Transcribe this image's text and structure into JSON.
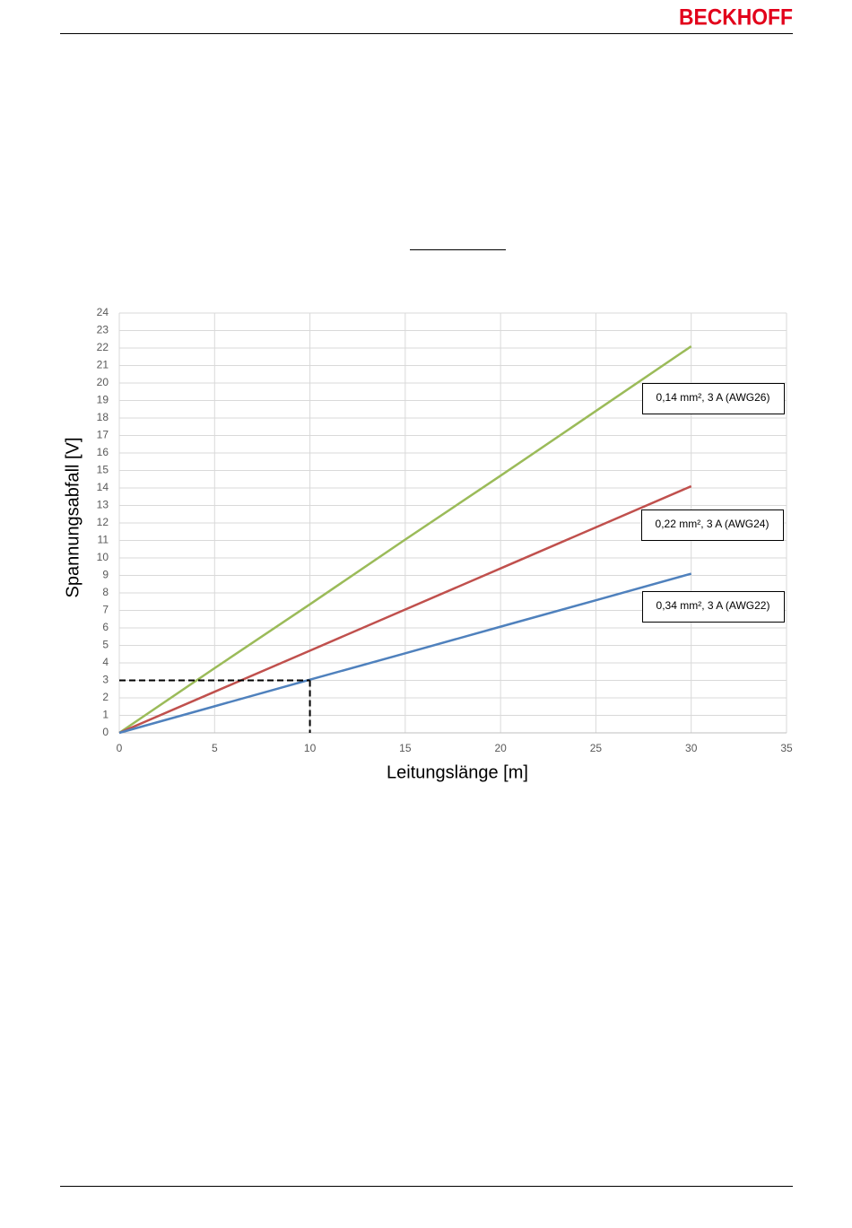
{
  "header": {
    "logo": "BECKHOFF"
  },
  "chart_data": {
    "type": "line",
    "x_label": "Leitungslänge [m]",
    "y_label": "Spannungsabfall [V]",
    "x": [
      0,
      5,
      10,
      15,
      20,
      25,
      30
    ],
    "series": [
      {
        "name": "0,14 mm², 3 A (AWG26)",
        "color": "#9bbb59",
        "values": [
          0,
          3.7,
          7.35,
          11.05,
          14.7,
          18.4,
          22.1
        ]
      },
      {
        "name": "0,22 mm², 3 A (AWG24)",
        "color": "#c0504d",
        "values": [
          0,
          2.35,
          4.7,
          7.05,
          9.4,
          11.75,
          14.1
        ]
      },
      {
        "name": "0,34 mm², 3 A (AWG22)",
        "color": "#4f81bd",
        "values": [
          0,
          1.52,
          3.04,
          4.55,
          6.07,
          7.58,
          9.1
        ]
      }
    ],
    "guide": {
      "x": 10,
      "y": 3
    },
    "xlim": [
      0,
      35
    ],
    "xticks": [
      0,
      5,
      10,
      15,
      20,
      25,
      30,
      35
    ],
    "ylim": [
      0,
      24
    ],
    "yticks": [
      0,
      1,
      2,
      3,
      4,
      5,
      6,
      7,
      8,
      9,
      10,
      11,
      12,
      13,
      14,
      15,
      16,
      17,
      18,
      19,
      20,
      21,
      22,
      23,
      24
    ],
    "grid": true
  }
}
